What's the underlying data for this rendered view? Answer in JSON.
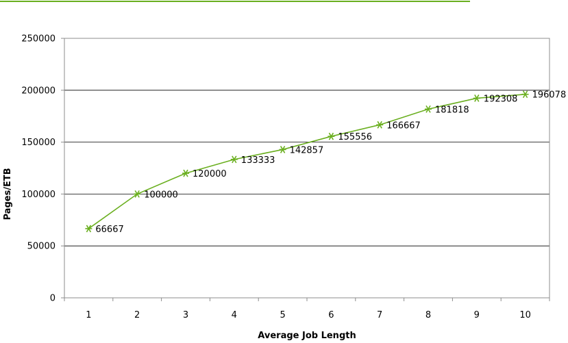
{
  "chart_data": {
    "type": "line",
    "xlabel": "Average Job Length",
    "ylabel": "Pages/ETB",
    "categories": [
      "1",
      "2",
      "3",
      "4",
      "5",
      "6",
      "7",
      "8",
      "9",
      "10"
    ],
    "series": [
      {
        "values": [
          66667,
          100000,
          120000,
          133333,
          142857,
          155556,
          166667,
          181818,
          192308,
          196078
        ],
        "labels": [
          "66667",
          "100000",
          "120000",
          "133333",
          "142857",
          "155556",
          "166667",
          "181818",
          "192308",
          "196078"
        ]
      }
    ],
    "ylim": [
      0,
      250000
    ],
    "yticks": [
      "0",
      "50000",
      "100000",
      "150000",
      "200000",
      "250000"
    ],
    "grid": true,
    "legend": "none",
    "colors": {
      "series": "#6aaf1f",
      "header_rule": "#6aaf1f",
      "grid": "#000000"
    }
  }
}
